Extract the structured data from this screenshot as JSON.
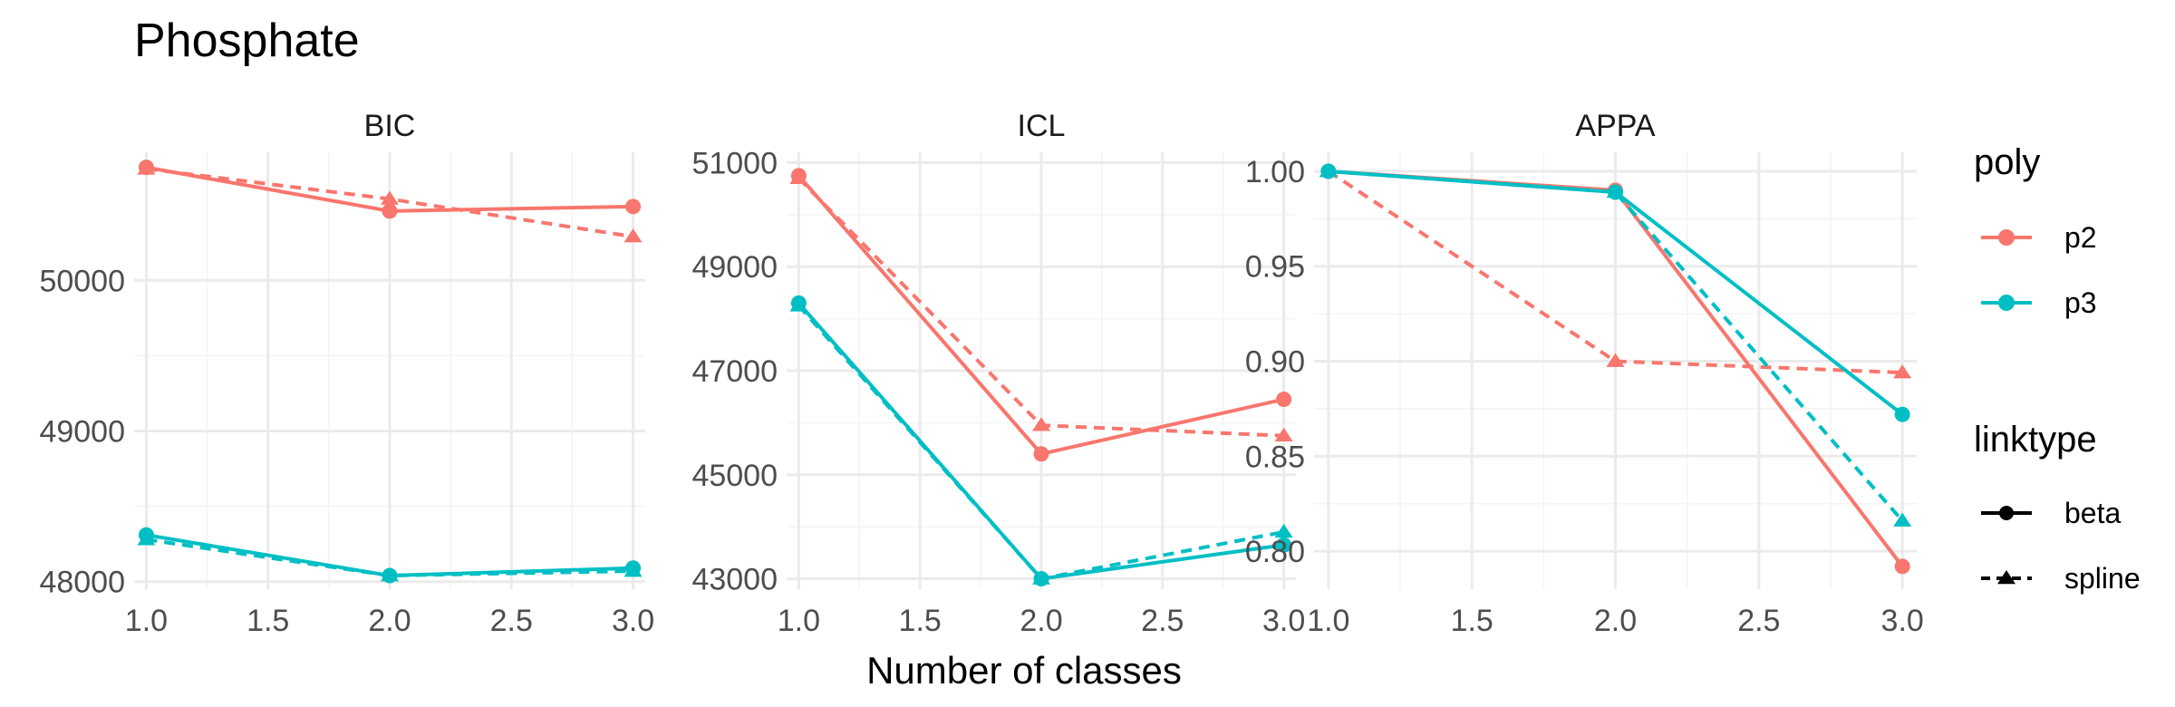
{
  "chart_data": {
    "type": "line",
    "title": "Phosphate",
    "xlabel": "Number of classes",
    "ylabel": "",
    "x": [
      1,
      2,
      3
    ],
    "x_ticks": [
      "1.0",
      "1.5",
      "2.0",
      "2.5",
      "3.0"
    ],
    "colors": {
      "p2": "#F8766D",
      "p3": "#00BFC4"
    },
    "legend": {
      "placement": "right",
      "poly": {
        "title": "poly",
        "items": [
          "p2",
          "p3"
        ]
      },
      "linktype": {
        "title": "linktype",
        "items": [
          "beta",
          "spline"
        ]
      }
    },
    "panels": [
      {
        "name": "BIC",
        "ylim": [
          47950,
          50850
        ],
        "y_ticks": [
          48000,
          49000,
          50000
        ],
        "y_tick_labels": [
          "48000",
          "49000",
          "50000"
        ],
        "series": [
          {
            "poly": "p2",
            "linktype": "beta",
            "values": [
              50750,
              50460,
              50490
            ]
          },
          {
            "poly": "p2",
            "linktype": "spline",
            "values": [
              50740,
              50540,
              50290
            ]
          },
          {
            "poly": "p3",
            "linktype": "beta",
            "values": [
              48310,
              48040,
              48090
            ]
          },
          {
            "poly": "p3",
            "linktype": "spline",
            "values": [
              48280,
              48040,
              48070
            ]
          }
        ]
      },
      {
        "name": "ICL",
        "ylim": [
          42800,
          51200
        ],
        "y_ticks": [
          43000,
          45000,
          47000,
          49000,
          51000
        ],
        "y_tick_labels": [
          "43000",
          "45000",
          "47000",
          "49000",
          "51000"
        ],
        "series": [
          {
            "poly": "p2",
            "linktype": "beta",
            "values": [
              50750,
              45400,
              46450
            ]
          },
          {
            "poly": "p2",
            "linktype": "spline",
            "values": [
              50700,
              45950,
              45750
            ]
          },
          {
            "poly": "p3",
            "linktype": "beta",
            "values": [
              48300,
              43000,
              43650
            ]
          },
          {
            "poly": "p3",
            "linktype": "spline",
            "values": [
              48250,
              43000,
              43900
            ]
          }
        ]
      },
      {
        "name": "APPA",
        "ylim": [
          0.78,
          1.01
        ],
        "y_ticks": [
          0.8,
          0.85,
          0.9,
          0.95,
          1.0
        ],
        "y_tick_labels": [
          "0.80",
          "0.85",
          "0.90",
          "0.95",
          "1.00"
        ],
        "series": [
          {
            "poly": "p2",
            "linktype": "beta",
            "values": [
              1.0,
              0.99,
              0.792
            ]
          },
          {
            "poly": "p2",
            "linktype": "spline",
            "values": [
              1.0,
              0.9,
              0.894
            ]
          },
          {
            "poly": "p3",
            "linktype": "beta",
            "values": [
              1.0,
              0.989,
              0.872
            ]
          },
          {
            "poly": "p3",
            "linktype": "spline",
            "values": [
              1.0,
              0.989,
              0.816
            ]
          }
        ]
      }
    ]
  }
}
